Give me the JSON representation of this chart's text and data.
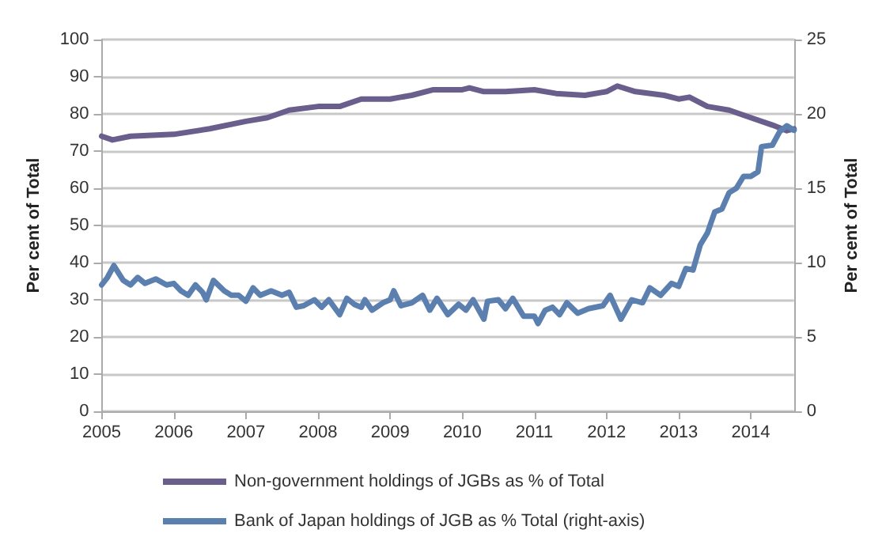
{
  "chart_data": {
    "type": "line",
    "ylabel": "Per cent of Total",
    "y2label": "Per cent of Total",
    "xlim": [
      2005,
      2014.6
    ],
    "xticks": [
      2005,
      2006,
      2007,
      2008,
      2009,
      2010,
      2011,
      2012,
      2013,
      2014
    ],
    "ylim": [
      0,
      100
    ],
    "yticks": [
      0,
      10,
      20,
      30,
      40,
      50,
      60,
      70,
      80,
      90,
      100
    ],
    "y2lim": [
      0,
      25
    ],
    "y2ticks": [
      0,
      5,
      10,
      15,
      20,
      25
    ],
    "grid": "y",
    "legend": "bottom",
    "marker": "none",
    "line_style": "solid",
    "series": [
      {
        "name": "Non-government holdings of JGBs as % of Total",
        "color": "#6a5f8c",
        "x": [
          2005,
          2005.15,
          2005.4,
          2006,
          2006.5,
          2007,
          2007.3,
          2007.6,
          2008,
          2008.3,
          2008.6,
          2009,
          2009.3,
          2009.6,
          2010,
          2010.1,
          2010.3,
          2010.6,
          2011,
          2011.3,
          2011.7,
          2012,
          2012.15,
          2012.4,
          2012.8,
          2013,
          2013.15,
          2013.4,
          2013.7,
          2014,
          2014.3,
          2014.5,
          2014.6
        ],
        "values": [
          74,
          73,
          74,
          74.5,
          76,
          78,
          79,
          81,
          82,
          82,
          84,
          84,
          85,
          86.5,
          86.5,
          87,
          86,
          86,
          86.5,
          85.5,
          85,
          86,
          87.5,
          86,
          85,
          84,
          84.5,
          82,
          81,
          79,
          77,
          75.5,
          76
        ]
      },
      {
        "name": "Bank of Japan holdings of JGB as % Total (right-axis)",
        "color": "#5b7fae",
        "axis": "y2",
        "x": [
          2005,
          2005.08,
          2005.17,
          2005.3,
          2005.4,
          2005.5,
          2005.6,
          2005.75,
          2005.9,
          2006,
          2006.1,
          2006.2,
          2006.3,
          2006.4,
          2006.45,
          2006.55,
          2006.7,
          2006.8,
          2006.9,
          2007,
          2007.1,
          2007.2,
          2007.35,
          2007.5,
          2007.6,
          2007.7,
          2007.8,
          2007.95,
          2008.05,
          2008.15,
          2008.3,
          2008.4,
          2008.5,
          2008.6,
          2008.65,
          2008.75,
          2008.9,
          2009,
          2009.05,
          2009.15,
          2009.3,
          2009.45,
          2009.55,
          2009.65,
          2009.8,
          2009.95,
          2010.05,
          2010.15,
          2010.3,
          2010.35,
          2010.5,
          2010.6,
          2010.7,
          2010.85,
          2011,
          2011.05,
          2011.15,
          2011.25,
          2011.35,
          2011.45,
          2011.6,
          2011.75,
          2011.95,
          2012.05,
          2012.2,
          2012.35,
          2012.5,
          2012.6,
          2012.75,
          2012.9,
          2013,
          2013.1,
          2013.2,
          2013.3,
          2013.4,
          2013.5,
          2013.6,
          2013.7,
          2013.8,
          2013.9,
          2014,
          2014.1,
          2014.15,
          2014.3,
          2014.4,
          2014.5,
          2014.6
        ],
        "values": [
          8.5,
          9,
          9.8,
          8.8,
          8.5,
          9,
          8.6,
          8.9,
          8.5,
          8.6,
          8.1,
          7.8,
          8.5,
          8,
          7.5,
          8.8,
          8.1,
          7.8,
          7.8,
          7.4,
          8.3,
          7.8,
          8.1,
          7.8,
          8,
          7,
          7.1,
          7.5,
          7,
          7.5,
          6.5,
          7.6,
          7.2,
          7,
          7.5,
          6.8,
          7.3,
          7.5,
          8.1,
          7.1,
          7.3,
          7.8,
          6.8,
          7.6,
          6.5,
          7.2,
          6.8,
          7.5,
          6.2,
          7.4,
          7.5,
          6.9,
          7.6,
          6.4,
          6.4,
          5.9,
          6.8,
          7,
          6.5,
          7.3,
          6.6,
          6.9,
          7.1,
          7.8,
          6.2,
          7.5,
          7.3,
          8.3,
          7.8,
          8.6,
          8.4,
          9.6,
          9.5,
          11.2,
          12,
          13.4,
          13.6,
          14.7,
          15,
          15.8,
          15.8,
          16.1,
          17.8,
          17.9,
          18.8,
          19.2,
          18.9
        ]
      }
    ]
  }
}
